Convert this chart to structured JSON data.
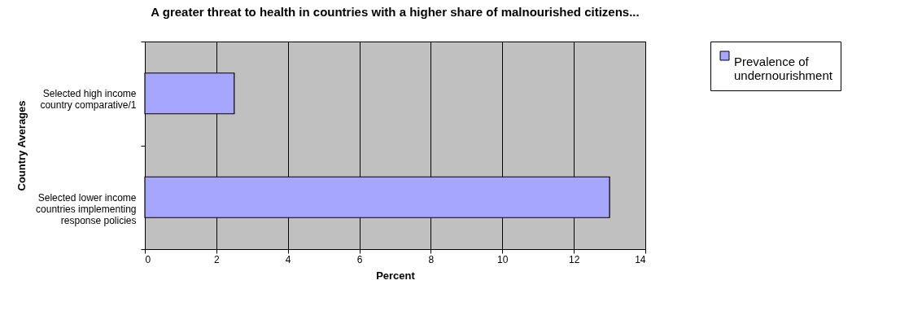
{
  "chart_data": {
    "type": "bar",
    "orientation": "horizontal",
    "title": "A greater threat to health in countries with a higher share of malnourished citizens...",
    "xlabel": "Percent",
    "ylabel": "Country Averages",
    "categories": [
      "Selected high income country comparative/1",
      "Selected lower income countries implementing response policies"
    ],
    "series": [
      {
        "name": "Prevalence of undernourishment",
        "color": "#a6a6ff",
        "values": [
          2.5,
          13
        ]
      }
    ],
    "xlim": [
      0,
      14
    ],
    "xticks": [
      0,
      2,
      4,
      6,
      8,
      10,
      12,
      14
    ],
    "grid": "x",
    "legend": "right"
  }
}
